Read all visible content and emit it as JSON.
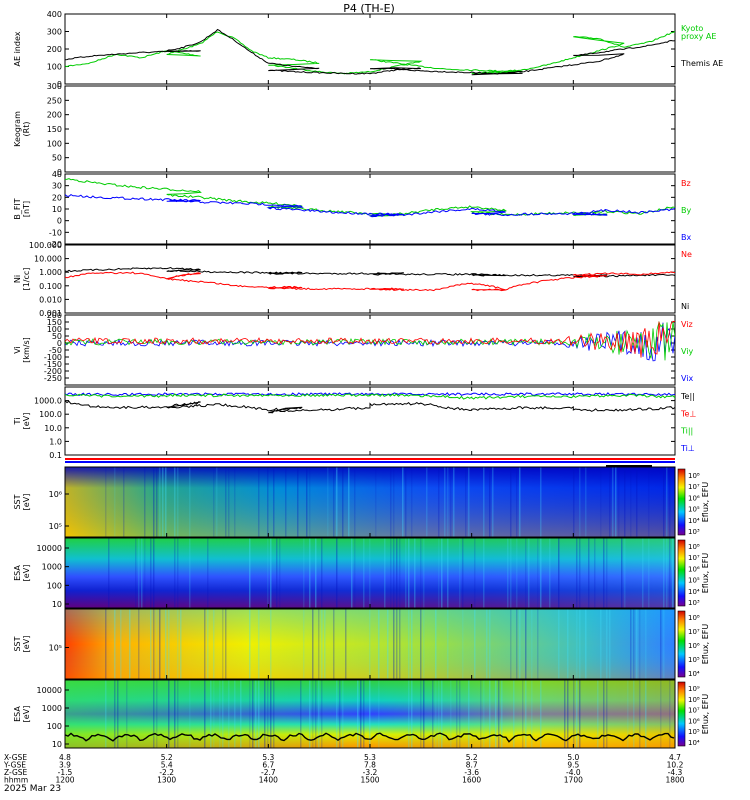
{
  "title": "P4 (TH-E)",
  "date_label": "2025 Mar 23",
  "chart_data": {
    "type": "line",
    "x_ticks": [
      "1200",
      "1300",
      "1400",
      "1500",
      "1600",
      "1700",
      "1800"
    ],
    "x_range": [
      "1200",
      "1800"
    ],
    "ephemeris": {
      "labels": [
        "X-GSE",
        "Y-GSE",
        "Z-GSE",
        "hhmm"
      ],
      "rows": [
        [
          "4.8",
          "3.9",
          "-1.5",
          "1200"
        ],
        [
          "5.2",
          "5.4",
          "-2.2",
          "1300"
        ],
        [
          "5.3",
          "6.7",
          "-2.7",
          "1400"
        ],
        [
          "5.3",
          "7.8",
          "-3.2",
          "1500"
        ],
        [
          "5.2",
          "8.7",
          "-3.6",
          "1600"
        ],
        [
          "5.0",
          "9.5",
          "-4.0",
          "1700"
        ],
        [
          "4.7",
          "10.2",
          "-4.3",
          "1800"
        ]
      ]
    },
    "panels": [
      {
        "id": "ae",
        "ylabel": "AE index",
        "ylim": [
          0,
          400
        ],
        "yticks": [
          "400",
          "300",
          "200",
          "100",
          "0"
        ],
        "legend": [
          {
            "name": "Kyoto",
            "color": "#00cc00"
          },
          {
            "name": "proxy AE",
            "color": "#00cc00"
          },
          {
            "name": "Themis AE",
            "color": "#000000"
          }
        ],
        "series": [
          {
            "name": "Kyoto proxy AE",
            "color": "#00cc00",
            "x": [
              1200,
              1215,
              1230,
              1245,
              1260,
              1280,
              1300,
              1310,
              1320,
              1330,
              1340,
              1350,
              1360,
              1375,
              1390,
              1400,
              1415,
              1430,
              1445,
              1460,
              1475,
              1490,
              1500,
              1515,
              1530,
              1545,
              1560,
              1575,
              1590,
              1600,
              1615,
              1630,
              1645,
              1660,
              1675,
              1690,
              1700,
              1715,
              1730,
              1745,
              1760,
              1775,
              1790,
              1800
            ],
            "y": [
              100,
              120,
              170,
              150,
              190,
              160,
              170,
              200,
              230,
              300,
              260,
              190,
              150,
              140,
              120,
              110,
              90,
              70,
              60,
              70,
              100,
              130,
              140,
              120,
              100,
              85,
              80,
              75,
              70,
              60,
              70,
              80,
              110,
              150,
              190,
              230,
              270,
              260,
              210,
              240,
              300,
              260,
              220,
              215
            ]
          },
          {
            "name": "Themis AE",
            "color": "#000000",
            "x": [
              1200,
              1215,
              1230,
              1245,
              1260,
              1280,
              1300,
              1310,
              1320,
              1330,
              1340,
              1350,
              1360,
              1375,
              1390,
              1400,
              1415,
              1430,
              1445,
              1460,
              1475,
              1490,
              1500,
              1515,
              1530,
              1545,
              1560,
              1575,
              1590,
              1600,
              1615,
              1630,
              1645,
              1660,
              1675,
              1690,
              1700,
              1715,
              1730,
              1745,
              1760,
              1775,
              1790,
              1800
            ],
            "y": [
              140,
              160,
              170,
              180,
              185,
              190,
              190,
              210,
              240,
              310,
              250,
              180,
              120,
              100,
              90,
              80,
              70,
              65,
              60,
              60,
              80,
              90,
              90,
              85,
              75,
              70,
              65,
              60,
              60,
              55,
              60,
              70,
              90,
              110,
              130,
              170,
              160,
              180,
              200,
              220,
              250,
              270,
              290,
              250
            ]
          }
        ]
      },
      {
        "id": "keogram",
        "ylabel": "Keogram",
        "ylabel2": "(Rt)",
        "ylim": [
          0,
          300
        ],
        "yticks": [
          "300",
          "250",
          "200",
          "150",
          "100",
          "50",
          "0"
        ],
        "series": []
      },
      {
        "id": "bfield",
        "ylabel": "B_FIT",
        "ylabel2": "[nT]",
        "ylim": [
          -20,
          40
        ],
        "yticks": [
          "40",
          "30",
          "20",
          "10",
          "0",
          "-10",
          "-20"
        ],
        "legend": [
          {
            "name": "Bz",
            "color": "#ff0000"
          },
          {
            "name": "By",
            "color": "#00cc00"
          },
          {
            "name": "Bx",
            "color": "#0000ff"
          }
        ],
        "series": [
          {
            "name": "By",
            "color": "#00cc00",
            "x": [
              1200,
              1220,
              1240,
              1260,
              1280,
              1300,
              1320,
              1340,
              1360,
              1380,
              1400,
              1420,
              1440,
              1460,
              1480,
              1500,
              1520,
              1540,
              1560,
              1580,
              1600,
              1620,
              1640,
              1660,
              1680,
              1700,
              1720,
              1740,
              1760,
              1780,
              1800
            ],
            "y": [
              36,
              32,
              29,
              27,
              25,
              22,
              20,
              17,
              15,
              13,
              12,
              10,
              8,
              6,
              5,
              4,
              6,
              10,
              12,
              9,
              7,
              5,
              6,
              7,
              5,
              5,
              8,
              6,
              12,
              9,
              6
            ]
          },
          {
            "name": "Bx",
            "color": "#0000ff",
            "x": [
              1200,
              1220,
              1240,
              1260,
              1280,
              1300,
              1320,
              1340,
              1360,
              1380,
              1400,
              1420,
              1440,
              1460,
              1480,
              1500,
              1520,
              1540,
              1560,
              1580,
              1600,
              1620,
              1640,
              1660,
              1680,
              1700,
              1720,
              1740,
              1760,
              1780,
              1800
            ],
            "y": [
              22,
              20,
              19,
              18,
              17,
              17,
              16,
              15,
              14,
              12,
              11,
              9,
              7,
              6,
              5,
              4,
              5,
              8,
              10,
              8,
              6,
              5,
              6,
              6,
              5,
              6,
              9,
              7,
              10,
              8,
              7
            ]
          }
        ]
      },
      {
        "id": "density",
        "ylabel": "Ni",
        "ylabel2": "[1/cc]",
        "scale": "log",
        "ylim": [
          0.001,
          100
        ],
        "yticks": [
          "100.000",
          "10.000",
          "1.000",
          "0.100",
          "0.010",
          "0.001"
        ],
        "legend": [
          {
            "name": "Ne",
            "color": "#ff0000"
          },
          {
            "name": "Ni",
            "color": "#000000"
          }
        ],
        "series": [
          {
            "name": "Ni",
            "color": "#000000",
            "x": [
              1200,
              1220,
              1240,
              1260,
              1280,
              1300,
              1320,
              1340,
              1360,
              1380,
              1400,
              1420,
              1440,
              1460,
              1480,
              1500,
              1520,
              1540,
              1560,
              1580,
              1600,
              1620,
              1640,
              1660,
              1680,
              1700,
              1720,
              1740,
              1760,
              1780,
              1800
            ],
            "y": [
              1.2,
              1.5,
              1.8,
              2.0,
              1.6,
              1.3,
              1.1,
              1.0,
              0.9,
              0.9,
              0.8,
              0.8,
              0.8,
              0.8,
              0.8,
              0.7,
              0.7,
              0.7,
              0.7,
              0.6,
              0.6,
              0.6,
              0.6,
              0.6,
              0.6,
              0.5,
              0.5,
              0.6,
              0.6,
              0.5,
              0.5
            ]
          },
          {
            "name": "Ne",
            "color": "#ff0000",
            "x": [
              1200,
              1220,
              1240,
              1260,
              1280,
              1300,
              1320,
              1340,
              1360,
              1380,
              1400,
              1420,
              1440,
              1460,
              1480,
              1500,
              1520,
              1540,
              1560,
              1580,
              1600,
              1620,
              1640,
              1660,
              1680,
              1700,
              1720,
              1740,
              1760,
              1780,
              1800
            ],
            "y": [
              0.4,
              0.9,
              0.9,
              0.3,
              0.9,
              0.3,
              0.2,
              0.1,
              0.08,
              0.08,
              0.07,
              0.06,
              0.06,
              0.06,
              0.06,
              0.06,
              0.05,
              0.05,
              0.15,
              0.05,
              0.05,
              0.05,
              0.2,
              0.4,
              0.5,
              0.6,
              0.8,
              0.7,
              1.0,
              0.8,
              0.7
            ]
          }
        ]
      },
      {
        "id": "velocity",
        "ylabel": "Vi",
        "ylabel2": "[km/s]",
        "ylim": [
          -300,
          200
        ],
        "yticks": [
          "200",
          "150",
          "100",
          "50",
          "0",
          "-50",
          "-100",
          "-150",
          "-200",
          "-250"
        ],
        "legend": [
          {
            "name": "Viz",
            "color": "#ff0000"
          },
          {
            "name": "Viy",
            "color": "#00cc00"
          },
          {
            "name": "Vix",
            "color": "#0000ff"
          }
        ],
        "series": []
      },
      {
        "id": "temperature",
        "ylabel": "Ti",
        "ylabel2": "[eV]",
        "scale": "log",
        "ylim": [
          0.1,
          10000
        ],
        "yticks": [
          "1000.0",
          "100.0",
          "10.0",
          "1.0",
          "0.1"
        ],
        "legend": [
          {
            "name": "Te||",
            "color": "#000000"
          },
          {
            "name": "Te⊥",
            "color": "#ff0000"
          },
          {
            "name": "Ti||",
            "color": "#00cc00"
          },
          {
            "name": "Ti⊥",
            "color": "#0000ff"
          }
        ],
        "series": [
          {
            "name": "Ti⊥",
            "color": "#0000ff",
            "x": [
              1200,
              1230,
              1260,
              1300,
              1330,
              1360,
              1400,
              1430,
              1460,
              1500,
              1530,
              1560,
              1600,
              1630,
              1660,
              1700,
              1730,
              1760,
              1800
            ],
            "y": [
              3000,
              2800,
              3000,
              3000,
              3000,
              3000,
              3000,
              3000,
              3000,
              3000,
              3000,
              3000,
              3000,
              3000,
              3000,
              3000,
              3000,
              3000,
              3000
            ]
          },
          {
            "name": "Ti||",
            "color": "#00cc00",
            "x": [
              1200,
              1230,
              1260,
              1300,
              1330,
              1360,
              1400,
              1430,
              1460,
              1500,
              1530,
              1560,
              1600,
              1630,
              1660,
              1700,
              1730,
              1760,
              1800
            ],
            "y": [
              2500,
              2000,
              2200,
              2500,
              2400,
              2500,
              2500,
              2500,
              2500,
              2500,
              2300,
              1500,
              1500,
              2000,
              1800,
              2000,
              2500,
              1800,
              2000
            ]
          },
          {
            "name": "Te||",
            "color": "#000000",
            "x": [
              1200,
              1215,
              1230,
              1260,
              1280,
              1300,
              1330,
              1360,
              1380,
              1400,
              1430,
              1460,
              1500,
              1530,
              1545,
              1560,
              1600,
              1630,
              1660,
              1700,
              1730,
              1760,
              1800
            ],
            "y": [
              800,
              400,
              300,
              350,
              700,
              300,
              500,
              200,
              300,
              150,
              200,
              300,
              500,
              600,
              300,
              200,
              200,
              300,
              300,
              200,
              200,
              300,
              500
            ]
          }
        ]
      }
    ],
    "spectrograms": [
      {
        "id": "sst-ion",
        "ylabel": "SST",
        "ylabel2": "[eV]",
        "yticks": [
          "10⁶",
          "10⁵"
        ],
        "colorbar": {
          "label": "Eflux, EFU",
          "ticks": [
            "10⁸",
            "10⁷",
            "10⁶",
            "10⁵",
            "10⁴",
            "10³"
          ]
        }
      },
      {
        "id": "esa-ion",
        "ylabel": "ESA",
        "ylabel2": "[eV]",
        "yticks": [
          "10000",
          "1000",
          "100",
          "10"
        ],
        "colorbar": {
          "label": "Eflux, EFU",
          "ticks": [
            "10⁸",
            "10⁷",
            "10⁶",
            "10⁵",
            "10⁴",
            "10³"
          ]
        }
      },
      {
        "id": "sst-elec",
        "ylabel": "SST",
        "ylabel2": "[eV]",
        "yticks": [
          "10⁵"
        ],
        "colorbar": {
          "label": "Eflux, EFU",
          "ticks": [
            "10⁸",
            "10⁷",
            "10⁶",
            "10⁵",
            "10⁴"
          ]
        }
      },
      {
        "id": "esa-elec",
        "ylabel": "ESA",
        "ylabel2": "[eV]",
        "yticks": [
          "10000",
          "1000",
          "100",
          "10"
        ],
        "colorbar": {
          "label": "Eflux, EFU",
          "ticks": [
            "10⁹",
            "10⁸",
            "10⁷",
            "10⁶",
            "10⁵",
            "10⁴"
          ]
        }
      }
    ]
  }
}
